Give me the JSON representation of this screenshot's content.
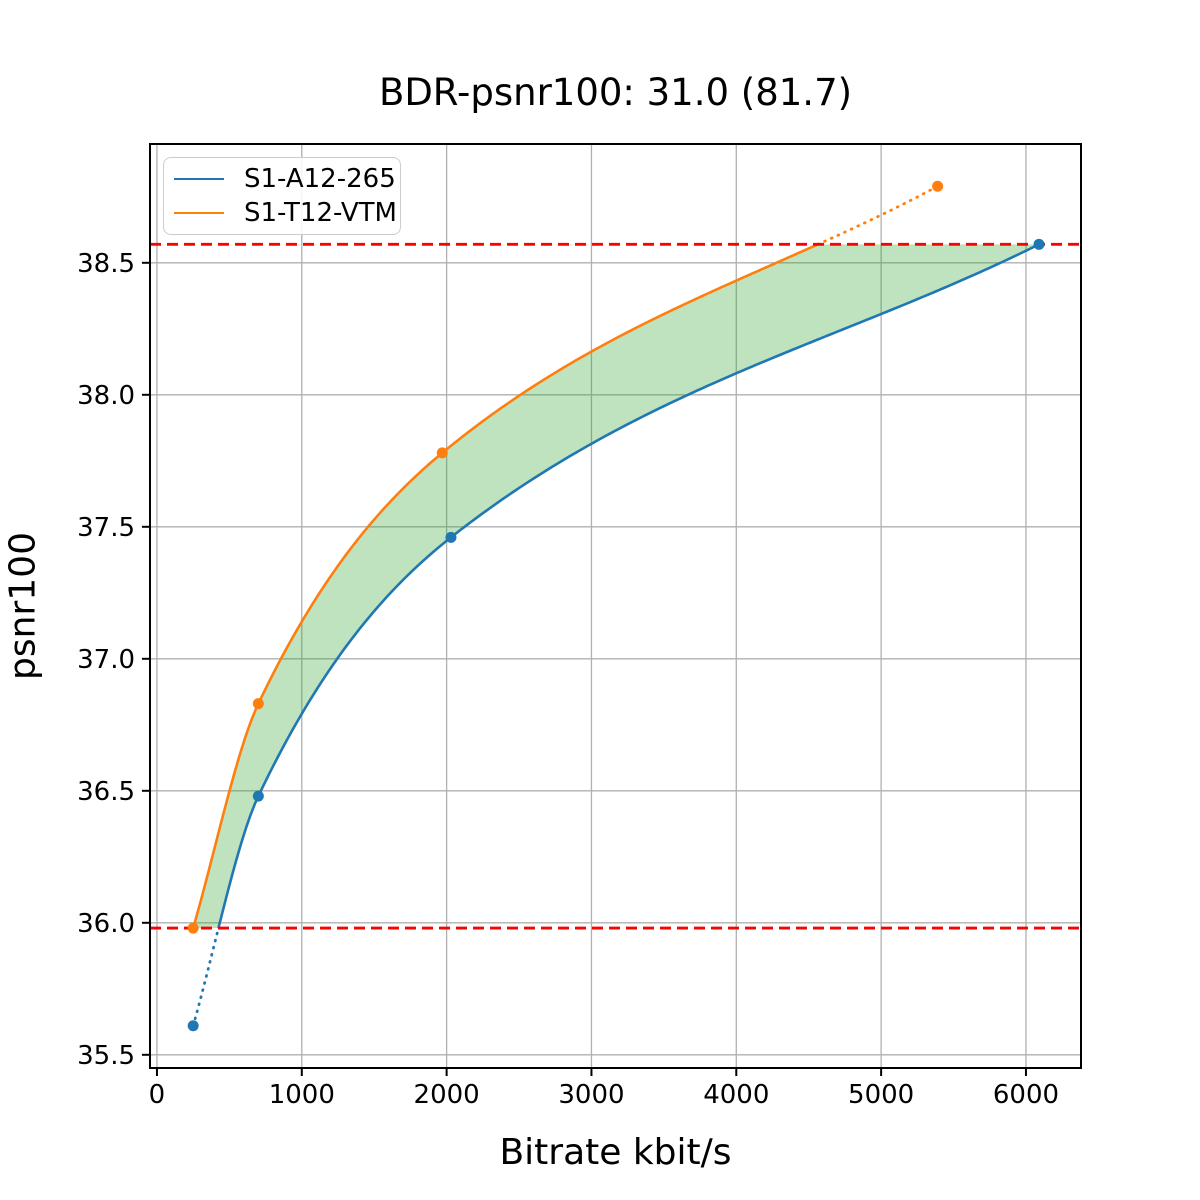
{
  "chart_data": {
    "type": "line",
    "title": "BDR-psnr100: 31.0 (81.7)",
    "xlabel": "Bitrate kbit/s",
    "ylabel": "psnr100",
    "xlim": [
      -48,
      6380
    ],
    "ylim": [
      35.45,
      38.95
    ],
    "xticks": [
      0,
      1000,
      2000,
      3000,
      4000,
      5000,
      6000
    ],
    "yticks": [
      35.5,
      36.0,
      36.5,
      37.0,
      37.5,
      38.0,
      38.5
    ],
    "grid": true,
    "grid_color": "#b0b0b0",
    "axis_color": "#000000",
    "legend": {
      "position": "upper-left"
    },
    "series": [
      {
        "name": "S1-A12-265",
        "color": "#1f77b4",
        "marker": "circle",
        "points": [
          [
            250,
            35.61
          ],
          [
            700,
            36.48
          ],
          [
            2030,
            37.46
          ],
          [
            6090,
            38.57
          ]
        ]
      },
      {
        "name": "S1-T12-VTM",
        "color": "#ff7f0e",
        "marker": "circle",
        "points": [
          [
            250,
            35.98
          ],
          [
            700,
            36.83
          ],
          [
            1970,
            37.78
          ],
          [
            5390,
            38.79
          ]
        ]
      }
    ],
    "hlines": [
      {
        "y": 38.57,
        "color": "#ff0000",
        "style": "dashed"
      },
      {
        "y": 35.98,
        "color": "#ff0000",
        "style": "dashed"
      }
    ],
    "fill_between": {
      "color": "#2ca02c",
      "opacity": 0.3,
      "psnr_range": [
        35.98,
        38.57
      ]
    }
  }
}
